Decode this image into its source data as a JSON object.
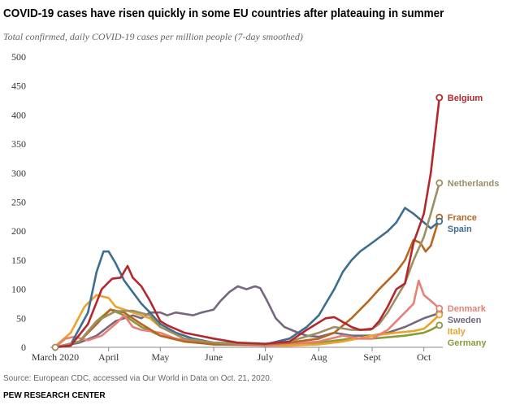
{
  "title": "COVID-19 cases have risen quickly in some EU countries after plateauing in summer",
  "subtitle": "Total confirmed, daily COVID-19 cases per million people (7-day smoothed)",
  "source": "Source: European CDC, accessed via Our World in Data on Oct. 21, 2020.",
  "org": "PEW RESEARCH CENTER",
  "chart_data": {
    "type": "line",
    "title": "COVID-19 cases have risen quickly in some EU countries after plateauing in summer",
    "ylim": [
      0,
      500
    ],
    "yticks": [
      0,
      50,
      100,
      150,
      200,
      250,
      300,
      350,
      400,
      450,
      500
    ],
    "xlim": [
      "2020-03-01",
      "2020-10-21"
    ],
    "xticks": [
      {
        "date": "2020-03-01",
        "label": "March 2020"
      },
      {
        "date": "2020-04-01",
        "label": "April"
      },
      {
        "date": "2020-05-01",
        "label": "May"
      },
      {
        "date": "2020-06-01",
        "label": "June"
      },
      {
        "date": "2020-07-01",
        "label": "July"
      },
      {
        "date": "2020-08-01",
        "label": "Aug"
      },
      {
        "date": "2020-09-01",
        "label": "Sept"
      },
      {
        "date": "2020-10-01",
        "label": "Oct"
      }
    ],
    "grid": false,
    "legend": "direct labels at line ends",
    "series": [
      {
        "name": "Sweden",
        "color": "#75677f",
        "points": [
          [
            "03-01",
            0
          ],
          [
            "03-15",
            8
          ],
          [
            "03-25",
            20
          ],
          [
            "04-05",
            45
          ],
          [
            "04-15",
            55
          ],
          [
            "04-20",
            50
          ],
          [
            "04-25",
            60
          ],
          [
            "05-01",
            60
          ],
          [
            "05-05",
            55
          ],
          [
            "05-10",
            60
          ],
          [
            "05-20",
            55
          ],
          [
            "05-25",
            60
          ],
          [
            "06-01",
            65
          ],
          [
            "06-05",
            80
          ],
          [
            "06-10",
            95
          ],
          [
            "06-15",
            105
          ],
          [
            "06-20",
            100
          ],
          [
            "06-25",
            105
          ],
          [
            "06-28",
            102
          ],
          [
            "07-02",
            80
          ],
          [
            "07-07",
            50
          ],
          [
            "07-12",
            35
          ],
          [
            "07-20",
            25
          ],
          [
            "07-25",
            20
          ],
          [
            "08-01",
            18
          ],
          [
            "08-10",
            25
          ],
          [
            "08-20",
            20
          ],
          [
            "09-01",
            20
          ],
          [
            "09-10",
            25
          ],
          [
            "09-20",
            35
          ],
          [
            "10-01",
            50
          ],
          [
            "10-10",
            59
          ]
        ]
      },
      {
        "name": "Germany",
        "color": "#8a9a3a",
        "points": [
          [
            "03-01",
            0
          ],
          [
            "03-15",
            10
          ],
          [
            "03-25",
            45
          ],
          [
            "04-02",
            65
          ],
          [
            "04-10",
            55
          ],
          [
            "04-20",
            35
          ],
          [
            "05-01",
            20
          ],
          [
            "05-15",
            10
          ],
          [
            "06-01",
            5
          ],
          [
            "07-01",
            4
          ],
          [
            "08-01",
            8
          ],
          [
            "08-20",
            15
          ],
          [
            "09-01",
            15
          ],
          [
            "09-20",
            20
          ],
          [
            "10-01",
            25
          ],
          [
            "10-05",
            30
          ],
          [
            "10-10",
            38
          ]
        ]
      },
      {
        "name": "Italy",
        "color": "#eca22b",
        "points": [
          [
            "03-01",
            2
          ],
          [
            "03-10",
            25
          ],
          [
            "03-18",
            70
          ],
          [
            "03-25",
            90
          ],
          [
            "04-01",
            85
          ],
          [
            "04-05",
            70
          ],
          [
            "04-15",
            60
          ],
          [
            "04-25",
            50
          ],
          [
            "05-01",
            35
          ],
          [
            "05-15",
            15
          ],
          [
            "06-01",
            6
          ],
          [
            "06-15",
            5
          ],
          [
            "07-01",
            3
          ],
          [
            "07-15",
            3
          ],
          [
            "08-01",
            5
          ],
          [
            "08-15",
            10
          ],
          [
            "09-01",
            20
          ],
          [
            "09-15",
            25
          ],
          [
            "09-25",
            28
          ],
          [
            "10-01",
            32
          ],
          [
            "10-05",
            42
          ],
          [
            "10-10",
            56
          ]
        ]
      },
      {
        "name": "Denmark",
        "color": "#e88077",
        "points": [
          [
            "03-01",
            0
          ],
          [
            "03-07",
            15
          ],
          [
            "03-12",
            18
          ],
          [
            "03-20",
            12
          ],
          [
            "03-28",
            20
          ],
          [
            "04-05",
            40
          ],
          [
            "04-10",
            55
          ],
          [
            "04-15",
            35
          ],
          [
            "04-20",
            30
          ],
          [
            "05-01",
            25
          ],
          [
            "05-10",
            15
          ],
          [
            "06-01",
            5
          ],
          [
            "07-01",
            3
          ],
          [
            "08-01",
            10
          ],
          [
            "08-15",
            20
          ],
          [
            "08-25",
            15
          ],
          [
            "09-01",
            15
          ],
          [
            "09-10",
            30
          ],
          [
            "09-15",
            45
          ],
          [
            "09-20",
            60
          ],
          [
            "09-25",
            75
          ],
          [
            "09-28",
            115
          ],
          [
            "10-01",
            90
          ],
          [
            "10-05",
            80
          ],
          [
            "10-10",
            67
          ]
        ]
      },
      {
        "name": "France",
        "color": "#b8651f",
        "points": [
          [
            "03-01",
            0
          ],
          [
            "03-15",
            10
          ],
          [
            "03-25",
            40
          ],
          [
            "04-02",
            65
          ],
          [
            "04-10",
            60
          ],
          [
            "04-20",
            40
          ],
          [
            "05-01",
            20
          ],
          [
            "05-15",
            10
          ],
          [
            "06-01",
            5
          ],
          [
            "07-01",
            5
          ],
          [
            "07-15",
            8
          ],
          [
            "08-01",
            15
          ],
          [
            "08-10",
            25
          ],
          [
            "08-20",
            50
          ],
          [
            "08-30",
            80
          ],
          [
            "09-05",
            100
          ],
          [
            "09-10",
            115
          ],
          [
            "09-15",
            130
          ],
          [
            "09-20",
            150
          ],
          [
            "09-25",
            185
          ],
          [
            "09-29",
            180
          ],
          [
            "10-02",
            165
          ],
          [
            "10-05",
            175
          ],
          [
            "10-10",
            224
          ]
        ]
      },
      {
        "name": "Spain",
        "color": "#3e6e8f",
        "points": [
          [
            "03-01",
            0
          ],
          [
            "03-10",
            5
          ],
          [
            "03-20",
            60
          ],
          [
            "03-25",
            130
          ],
          [
            "03-29",
            165
          ],
          [
            "04-01",
            165
          ],
          [
            "04-05",
            145
          ],
          [
            "04-10",
            115
          ],
          [
            "04-15",
            95
          ],
          [
            "04-20",
            75
          ],
          [
            "04-25",
            60
          ],
          [
            "05-01",
            40
          ],
          [
            "05-10",
            25
          ],
          [
            "05-20",
            15
          ],
          [
            "06-01",
            8
          ],
          [
            "06-15",
            7
          ],
          [
            "07-01",
            5
          ],
          [
            "07-15",
            15
          ],
          [
            "07-25",
            35
          ],
          [
            "08-01",
            55
          ],
          [
            "08-05",
            75
          ],
          [
            "08-10",
            100
          ],
          [
            "08-15",
            130
          ],
          [
            "08-20",
            150
          ],
          [
            "08-25",
            165
          ],
          [
            "09-01",
            180
          ],
          [
            "09-10",
            200
          ],
          [
            "09-15",
            215
          ],
          [
            "09-20",
            240
          ],
          [
            "09-25",
            230
          ],
          [
            "10-01",
            215
          ],
          [
            "10-05",
            205
          ],
          [
            "10-10",
            217
          ]
        ]
      },
      {
        "name": "Netherlands",
        "color": "#9b8f64",
        "points": [
          [
            "03-01",
            0
          ],
          [
            "03-15",
            10
          ],
          [
            "03-25",
            45
          ],
          [
            "04-05",
            62
          ],
          [
            "04-15",
            63
          ],
          [
            "04-25",
            55
          ],
          [
            "05-01",
            35
          ],
          [
            "05-15",
            15
          ],
          [
            "06-01",
            8
          ],
          [
            "06-15",
            6
          ],
          [
            "07-01",
            5
          ],
          [
            "07-15",
            10
          ],
          [
            "08-01",
            25
          ],
          [
            "08-10",
            35
          ],
          [
            "08-20",
            30
          ],
          [
            "08-31",
            30
          ],
          [
            "09-05",
            40
          ],
          [
            "09-10",
            60
          ],
          [
            "09-15",
            85
          ],
          [
            "09-20",
            110
          ],
          [
            "09-25",
            150
          ],
          [
            "10-01",
            190
          ],
          [
            "10-05",
            230
          ],
          [
            "10-10",
            283
          ]
        ]
      },
      {
        "name": "Belgium",
        "color": "#b3282d",
        "points": [
          [
            "03-01",
            0
          ],
          [
            "03-10",
            3
          ],
          [
            "03-20",
            40
          ],
          [
            "03-28",
            100
          ],
          [
            "04-03",
            118
          ],
          [
            "04-08",
            120
          ],
          [
            "04-12",
            140
          ],
          [
            "04-15",
            120
          ],
          [
            "04-20",
            105
          ],
          [
            "04-25",
            80
          ],
          [
            "05-01",
            45
          ],
          [
            "05-05",
            38
          ],
          [
            "05-15",
            25
          ],
          [
            "06-01",
            15
          ],
          [
            "06-15",
            8
          ],
          [
            "07-01",
            6
          ],
          [
            "07-15",
            10
          ],
          [
            "07-25",
            30
          ],
          [
            "08-05",
            50
          ],
          [
            "08-10",
            52
          ],
          [
            "08-20",
            35
          ],
          [
            "08-25",
            30
          ],
          [
            "09-01",
            32
          ],
          [
            "09-05",
            45
          ],
          [
            "09-10",
            70
          ],
          [
            "09-15",
            100
          ],
          [
            "09-20",
            110
          ],
          [
            "09-25",
            180
          ],
          [
            "10-01",
            230
          ],
          [
            "10-05",
            300
          ],
          [
            "10-10",
            430
          ]
        ]
      }
    ]
  }
}
